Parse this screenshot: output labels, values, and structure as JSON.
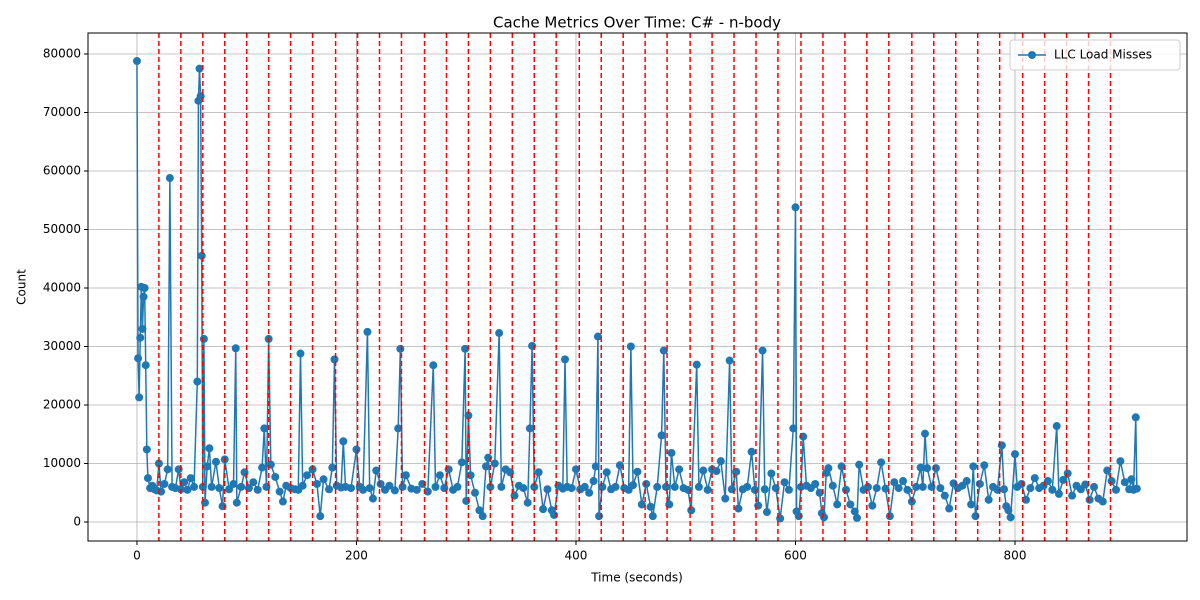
{
  "chart_data": {
    "type": "line",
    "title": "Cache Metrics Over Time: C# - n-body",
    "x_label": "Time (seconds)",
    "y_label": "Count",
    "xlim": [
      -44.6,
      956.7
    ],
    "ylim": [
      -3248,
      83590
    ],
    "xticks": [
      0,
      200,
      400,
      600,
      800
    ],
    "yticks": [
      0,
      10000,
      20000,
      30000,
      40000,
      50000,
      60000,
      70000,
      80000
    ],
    "grid": true,
    "legend": "upper right",
    "vline_color": "#ff0000",
    "vlines": [
      20,
      40,
      60,
      80,
      100,
      120,
      140,
      160,
      181,
      201,
      221,
      241,
      262,
      282,
      302,
      322,
      342,
      362,
      382,
      403,
      423,
      443,
      463,
      483,
      504,
      524,
      544,
      564,
      584,
      605,
      625,
      645,
      665,
      685,
      706,
      726,
      746,
      766,
      786,
      807,
      827,
      847,
      867,
      887
    ],
    "series": [
      {
        "name": "LLC Load Misses",
        "color": "#1f77b4",
        "x": [
          0,
          1,
          2,
          3,
          4,
          5,
          6,
          7,
          8,
          9,
          10,
          12,
          14,
          16,
          18,
          20,
          22,
          25,
          28,
          30,
          32,
          35,
          38,
          40,
          43,
          46,
          49,
          52,
          55,
          56,
          57,
          58,
          59,
          60,
          61,
          62,
          64,
          66,
          68,
          72,
          75,
          78,
          80,
          84,
          88,
          90,
          91,
          95,
          98,
          102,
          106,
          110,
          114,
          116,
          118,
          120,
          122,
          126,
          130,
          133,
          136,
          140,
          144,
          147,
          149,
          151,
          155,
          160,
          164,
          167,
          170,
          175,
          178,
          180,
          182,
          186,
          188,
          190,
          195,
          200,
          203,
          206,
          210,
          212,
          215,
          218,
          222,
          226,
          230,
          235,
          238,
          240,
          242,
          245,
          250,
          255,
          260,
          265,
          270,
          272,
          276,
          280,
          284,
          288,
          292,
          296,
          299,
          300,
          302,
          304,
          308,
          312,
          315,
          318,
          320,
          322,
          326,
          330,
          332,
          336,
          340,
          344,
          348,
          352,
          356,
          358,
          360,
          362,
          366,
          370,
          374,
          378,
          380,
          384,
          388,
          390,
          392,
          396,
          400,
          404,
          408,
          412,
          416,
          418,
          420,
          421,
          424,
          428,
          432,
          436,
          440,
          444,
          448,
          450,
          452,
          456,
          460,
          464,
          468,
          470,
          474,
          478,
          480,
          482,
          485,
          487,
          490,
          494,
          498,
          502,
          505,
          510,
          512,
          516,
          520,
          524,
          528,
          532,
          536,
          540,
          542,
          546,
          548,
          552,
          556,
          560,
          563,
          566,
          570,
          572,
          574,
          578,
          582,
          586,
          590,
          594,
          598,
          600,
          601,
          603,
          605,
          607,
          610,
          614,
          618,
          622,
          624,
          626,
          628,
          630,
          634,
          638,
          642,
          646,
          650,
          654,
          656,
          658,
          662,
          666,
          670,
          674,
          678,
          682,
          686,
          690,
          694,
          698,
          702,
          706,
          710,
          714,
          716,
          718,
          720,
          724,
          728,
          732,
          736,
          740,
          744,
          748,
          752,
          756,
          760,
          762,
          764,
          768,
          772,
          776,
          780,
          784,
          788,
          790,
          792,
          794,
          796,
          800,
          802,
          806,
          810,
          814,
          818,
          822,
          826,
          830,
          834,
          838,
          840,
          844,
          848,
          852,
          856,
          860,
          864,
          868,
          872,
          876,
          880,
          884,
          888,
          892,
          896,
          900,
          904,
          906,
          908,
          910,
          911
        ],
        "values": [
          78800,
          28000,
          21300,
          31500,
          40200,
          33000,
          38500,
          40000,
          26800,
          12400,
          7500,
          5800,
          6200,
          5600,
          5400,
          10000,
          5200,
          6500,
          9000,
          58800,
          6000,
          5800,
          9000,
          5600,
          6800,
          5500,
          7500,
          6000,
          24000,
          72000,
          77500,
          72800,
          45500,
          6000,
          31300,
          3300,
          9500,
          12600,
          6000,
          10300,
          5800,
          2700,
          10700,
          5600,
          6500,
          29700,
          3300,
          6000,
          8500,
          5800,
          6800,
          5500,
          9300,
          16000,
          6000,
          31300,
          9800,
          7700,
          5200,
          3500,
          6200,
          5800,
          5600,
          5500,
          28800,
          6200,
          8000,
          9000,
          6500,
          1000,
          7300,
          5600,
          9300,
          27800,
          6200,
          5900,
          13800,
          6000,
          5800,
          12400,
          6000,
          5500,
          32500,
          5800,
          4000,
          8800,
          6500,
          5500,
          6200,
          5400,
          16000,
          29600,
          6000,
          8000,
          5700,
          5500,
          6500,
          5200,
          26800,
          6000,
          8000,
          5800,
          9000,
          5500,
          6000,
          10200,
          29600,
          3600,
          18200,
          8000,
          5000,
          2000,
          1000,
          9500,
          11000,
          6000,
          10000,
          32300,
          6000,
          9000,
          8500,
          4500,
          6200,
          5800,
          3300,
          16000,
          30100,
          6000,
          8500,
          2200,
          5600,
          2000,
          1200,
          6200,
          5700,
          27800,
          6000,
          5800,
          9000,
          5600,
          6000,
          5000,
          7000,
          9500,
          31700,
          1000,
          6000,
          8500,
          5600,
          6000,
          9700,
          5800,
          5500,
          30000,
          6300,
          8600,
          3000,
          6500,
          2600,
          1000,
          6000,
          14800,
          29300,
          6000,
          3000,
          11800,
          6000,
          9000,
          5800,
          5500,
          2000,
          26900,
          6000,
          8800,
          5500,
          9000,
          8700,
          10400,
          4000,
          27600,
          5600,
          8600,
          2300,
          5600,
          6000,
          12000,
          5500,
          2800,
          29300,
          5600,
          1700,
          8300,
          5800,
          600,
          6800,
          5500,
          16000,
          53800,
          1800,
          1000,
          6000,
          14600,
          6200,
          5800,
          6500,
          5000,
          1500,
          800,
          8400,
          9200,
          6200,
          3000,
          9500,
          5500,
          3000,
          1800,
          700,
          9800,
          5500,
          6000,
          2800,
          5800,
          10200,
          5700,
          1000,
          6800,
          5800,
          7000,
          5500,
          3500,
          6000,
          9300,
          6000,
          15100,
          9200,
          6000,
          9200,
          5800,
          4500,
          2300,
          6600,
          5800,
          6200,
          7000,
          3000,
          9500,
          1000,
          6500,
          9700,
          3800,
          6000,
          5500,
          13100,
          5600,
          2700,
          2000,
          800,
          11600,
          6000,
          6500,
          3800,
          5800,
          7500,
          5800,
          6200,
          7000,
          5500,
          16400,
          4800,
          7200,
          8300,
          4500,
          6200,
          5600,
          6400,
          3800,
          6000,
          4000,
          3500,
          8800,
          7000,
          5500,
          10400,
          6800,
          5600,
          7300,
          5500,
          17900,
          5700
        ]
      }
    ]
  }
}
